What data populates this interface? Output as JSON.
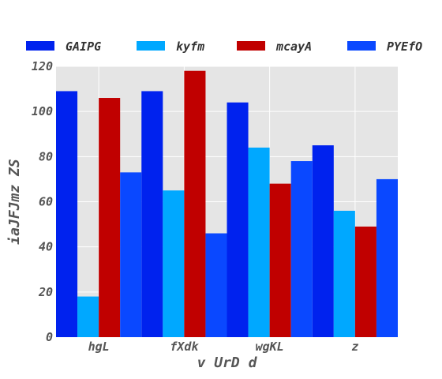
{
  "chart_data": {
    "type": "bar",
    "title": "",
    "xlabel": "v UrD d",
    "ylabel": "iaJFJmz ZS",
    "categories": [
      "hgL",
      "fXdk",
      "wgKL",
      "z"
    ],
    "series": [
      {
        "name": "GAIPG",
        "color": "#0022ee",
        "values": [
          109,
          109,
          104,
          85
        ]
      },
      {
        "name": "kyfm",
        "color": "#00a8ff",
        "values": [
          18,
          65,
          84,
          56
        ]
      },
      {
        "name": "mcayA",
        "color": "#c00000",
        "values": [
          106,
          118,
          68,
          49
        ]
      },
      {
        "name": "PYEfO",
        "color": "#0a48ff",
        "values": [
          73,
          46,
          78,
          70
        ]
      }
    ],
    "ylim": [
      0,
      120
    ],
    "yticks": [
      0,
      20,
      40,
      60,
      80,
      100,
      120
    ],
    "grid": true,
    "background": "#e5e5e5",
    "legend_position": "top"
  }
}
